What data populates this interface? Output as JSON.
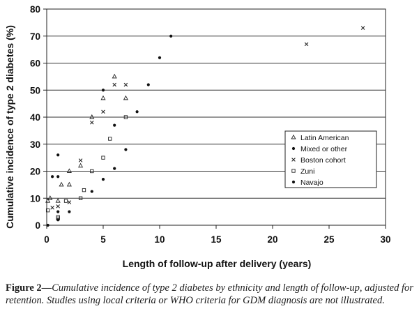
{
  "chart_data": {
    "type": "scatter",
    "title": "",
    "xlabel": "Length of follow-up after delivery (years)",
    "ylabel": "Cumulative incidence of type 2 diabetes (%)",
    "xlim": [
      0,
      30
    ],
    "ylim": [
      0,
      80
    ],
    "x_ticks": [
      0,
      5,
      10,
      15,
      20,
      25,
      30
    ],
    "y_ticks": [
      0,
      10,
      20,
      30,
      40,
      50,
      60,
      70,
      80
    ],
    "grid": "horizontal",
    "legend_position": "right",
    "series": [
      {
        "name": "Latin American",
        "marker": "triangle",
        "points": [
          [
            0.1,
            9
          ],
          [
            0.3,
            10
          ],
          [
            1.0,
            9
          ],
          [
            1.3,
            15
          ],
          [
            2.0,
            15
          ],
          [
            2.0,
            20
          ],
          [
            3.0,
            22
          ],
          [
            4.0,
            40
          ],
          [
            5.0,
            47
          ],
          [
            6.0,
            55
          ],
          [
            7.0,
            47
          ]
        ]
      },
      {
        "name": "Mixed or other",
        "marker": "dot",
        "points": [
          [
            0.5,
            18
          ],
          [
            1.0,
            26
          ],
          [
            1.0,
            18
          ],
          [
            1.0,
            5
          ],
          [
            2.0,
            5
          ],
          [
            4.0,
            12.5
          ],
          [
            5.0,
            17
          ],
          [
            6.0,
            21
          ],
          [
            6.0,
            37
          ],
          [
            7.0,
            28
          ],
          [
            8.0,
            42
          ],
          [
            9.0,
            52
          ],
          [
            10.0,
            62
          ],
          [
            11.0,
            70
          ]
        ]
      },
      {
        "name": "Boston cohort",
        "marker": "x",
        "points": [
          [
            0.5,
            6.5
          ],
          [
            1.0,
            7
          ],
          [
            2.0,
            8.5
          ],
          [
            3.0,
            24
          ],
          [
            4.0,
            38
          ],
          [
            5.0,
            42
          ],
          [
            6.0,
            52
          ],
          [
            7.0,
            52
          ],
          [
            23.0,
            67
          ],
          [
            28.0,
            73
          ]
        ]
      },
      {
        "name": "Zuni",
        "marker": "square",
        "points": [
          [
            0.1,
            5.5
          ],
          [
            1.0,
            3
          ],
          [
            1.0,
            2.5
          ],
          [
            1.7,
            9
          ],
          [
            3.0,
            10
          ],
          [
            3.3,
            13
          ],
          [
            4.0,
            20
          ],
          [
            5.0,
            25
          ],
          [
            5.6,
            32
          ],
          [
            7.0,
            40
          ]
        ]
      },
      {
        "name": "Navajo",
        "marker": "dot",
        "points": [
          [
            0.1,
            0
          ],
          [
            1.0,
            2
          ],
          [
            5.0,
            50
          ]
        ]
      }
    ]
  },
  "caption": {
    "label": "Figure 2—",
    "text": "Cumulative incidence of type 2 diabetes by ethnicity and length of follow-up, adjusted for retention. Studies using local criteria or WHO criteria for GDM diagnosis are not illustrated."
  }
}
